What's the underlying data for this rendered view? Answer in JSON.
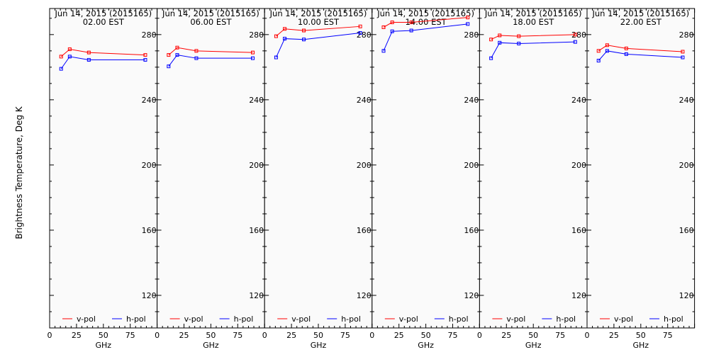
{
  "figure": {
    "ylabel": "Brightness Temperature, Deg K",
    "colors": {
      "v-pol": "#ff0000",
      "h-pol": "#0000ff",
      "axis": "#000000",
      "background": "#fafafa"
    }
  },
  "chart_data": [
    {
      "type": "line",
      "title": "Jun 14, 2015 (2015165)",
      "subtitle": "02.00 EST",
      "xlabel": "GHz",
      "xticks": [
        "0",
        "25",
        "50",
        "75"
      ],
      "yticks": [
        "120",
        "160",
        "200",
        "240",
        "280"
      ],
      "xlim": [
        0,
        100
      ],
      "ylim": [
        100,
        296
      ],
      "x": [
        10.7,
        18.7,
        36.5,
        89.0
      ],
      "series": [
        {
          "name": "v-pol",
          "values": [
            266.5,
            271,
            269,
            267.5
          ]
        },
        {
          "name": "h-pol",
          "values": [
            259,
            266.5,
            264.5,
            264.5
          ]
        }
      ],
      "legend": "bottom"
    },
    {
      "type": "line",
      "title": "Jun 14, 2015 (2015165)",
      "subtitle": "06.00 EST",
      "xlabel": "GHz",
      "xticks": [
        "0",
        "25",
        "50",
        "75"
      ],
      "yticks": [
        "120",
        "160",
        "200",
        "240",
        "280"
      ],
      "xlim": [
        0,
        100
      ],
      "ylim": [
        100,
        296
      ],
      "x": [
        10.7,
        18.7,
        36.5,
        89.0
      ],
      "series": [
        {
          "name": "v-pol",
          "values": [
            267.5,
            272,
            270,
            269
          ]
        },
        {
          "name": "h-pol",
          "values": [
            260.5,
            267.5,
            265.5,
            265.5
          ]
        }
      ],
      "legend": "bottom"
    },
    {
      "type": "line",
      "title": "Jun 14, 2015 (2015165)",
      "subtitle": "10.00 EST",
      "xlabel": "GHz",
      "xticks": [
        "0",
        "25",
        "50",
        "75"
      ],
      "yticks": [
        "120",
        "160",
        "200",
        "240",
        "280"
      ],
      "xlim": [
        0,
        100
      ],
      "ylim": [
        100,
        296
      ],
      "x": [
        10.7,
        18.7,
        36.5,
        89.0
      ],
      "series": [
        {
          "name": "v-pol",
          "values": [
            279,
            283.5,
            282.5,
            285
          ]
        },
        {
          "name": "h-pol",
          "values": [
            266,
            277.5,
            277,
            281
          ]
        }
      ],
      "legend": "bottom"
    },
    {
      "type": "line",
      "title": "Jun 14, 2015 (2015165)",
      "subtitle": "14.00 EST",
      "xlabel": "GHz",
      "xticks": [
        "0",
        "25",
        "50",
        "75"
      ],
      "yticks": [
        "120",
        "160",
        "200",
        "240",
        "280"
      ],
      "xlim": [
        0,
        100
      ],
      "ylim": [
        100,
        296
      ],
      "x": [
        10.7,
        18.7,
        36.5,
        89.0
      ],
      "series": [
        {
          "name": "v-pol",
          "values": [
            284.5,
            287.5,
            287.5,
            290.5
          ]
        },
        {
          "name": "h-pol",
          "values": [
            270,
            282,
            282.5,
            286.5
          ]
        }
      ],
      "legend": "bottom"
    },
    {
      "type": "line",
      "title": "Jun 14, 2015 (2015165)",
      "subtitle": "18.00 EST",
      "xlabel": "GHz",
      "xticks": [
        "0",
        "25",
        "50",
        "75"
      ],
      "yticks": [
        "120",
        "160",
        "200",
        "240",
        "280"
      ],
      "xlim": [
        0,
        100
      ],
      "ylim": [
        100,
        296
      ],
      "x": [
        10.7,
        18.7,
        36.5,
        89.0
      ],
      "series": [
        {
          "name": "v-pol",
          "values": [
            277,
            279.5,
            279,
            280
          ]
        },
        {
          "name": "h-pol",
          "values": [
            265.5,
            275,
            274.5,
            275.5
          ]
        }
      ],
      "legend": "bottom"
    },
    {
      "type": "line",
      "title": "Jun 14, 2015 (2015165)",
      "subtitle": "22.00 EST",
      "xlabel": "GHz",
      "xticks": [
        "0",
        "25",
        "50",
        "75"
      ],
      "yticks": [
        "120",
        "160",
        "200",
        "240",
        "280"
      ],
      "xlim": [
        0,
        100
      ],
      "ylim": [
        100,
        296
      ],
      "x": [
        10.7,
        18.7,
        36.5,
        89.0
      ],
      "series": [
        {
          "name": "v-pol",
          "values": [
            270,
            273.5,
            271.5,
            269.5
          ]
        },
        {
          "name": "h-pol",
          "values": [
            264,
            270,
            268,
            266
          ]
        }
      ],
      "legend": "bottom"
    }
  ]
}
